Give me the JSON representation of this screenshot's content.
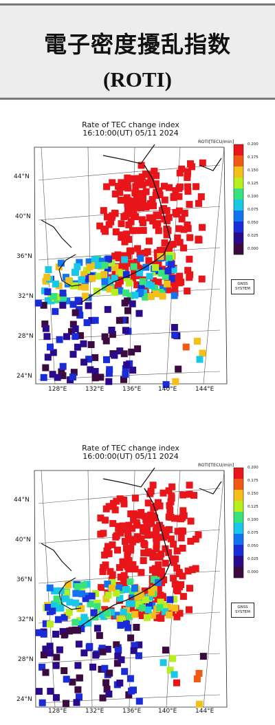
{
  "header": {
    "title_line1": "電子密度擾乱指数",
    "title_line2": "(ROTI)"
  },
  "panels": [
    {
      "title_line1": "Rate of TEC change index",
      "title_line2": "16:10:00(UT) 05/11 2024",
      "colorbar_title": "ROTI[TECU/min]",
      "badge_line1": "GNSS",
      "badge_line2": "SYSTEM"
    },
    {
      "title_line1": "Rate of TEC change index",
      "title_line2": "16:00:00(UT) 05/11 2024",
      "colorbar_title": "ROTI[TECU/min]",
      "badge_line1": "GNSS",
      "badge_line2": "SYSTEM"
    }
  ],
  "map": {
    "lat_labels": [
      "44°N",
      "40°N",
      "36°N",
      "32°N",
      "28°N",
      "24°N"
    ],
    "lon_labels": [
      "128°E",
      "132°E",
      "136°E",
      "140°E",
      "144°E"
    ],
    "colorbar_ticks": [
      "0.200",
      "0.175",
      "0.150",
      "0.125",
      "0.100",
      "0.075",
      "0.050",
      "0.025",
      "0.000"
    ],
    "colorbar_range": [
      0.0,
      0.2
    ],
    "colormap": [
      "#3b0a3f",
      "#2a0a8a",
      "#1a2bd8",
      "#1473f0",
      "#18c8e6",
      "#37e37a",
      "#b7ef1e",
      "#f2c018",
      "#f05a14",
      "#e8151b"
    ]
  }
}
